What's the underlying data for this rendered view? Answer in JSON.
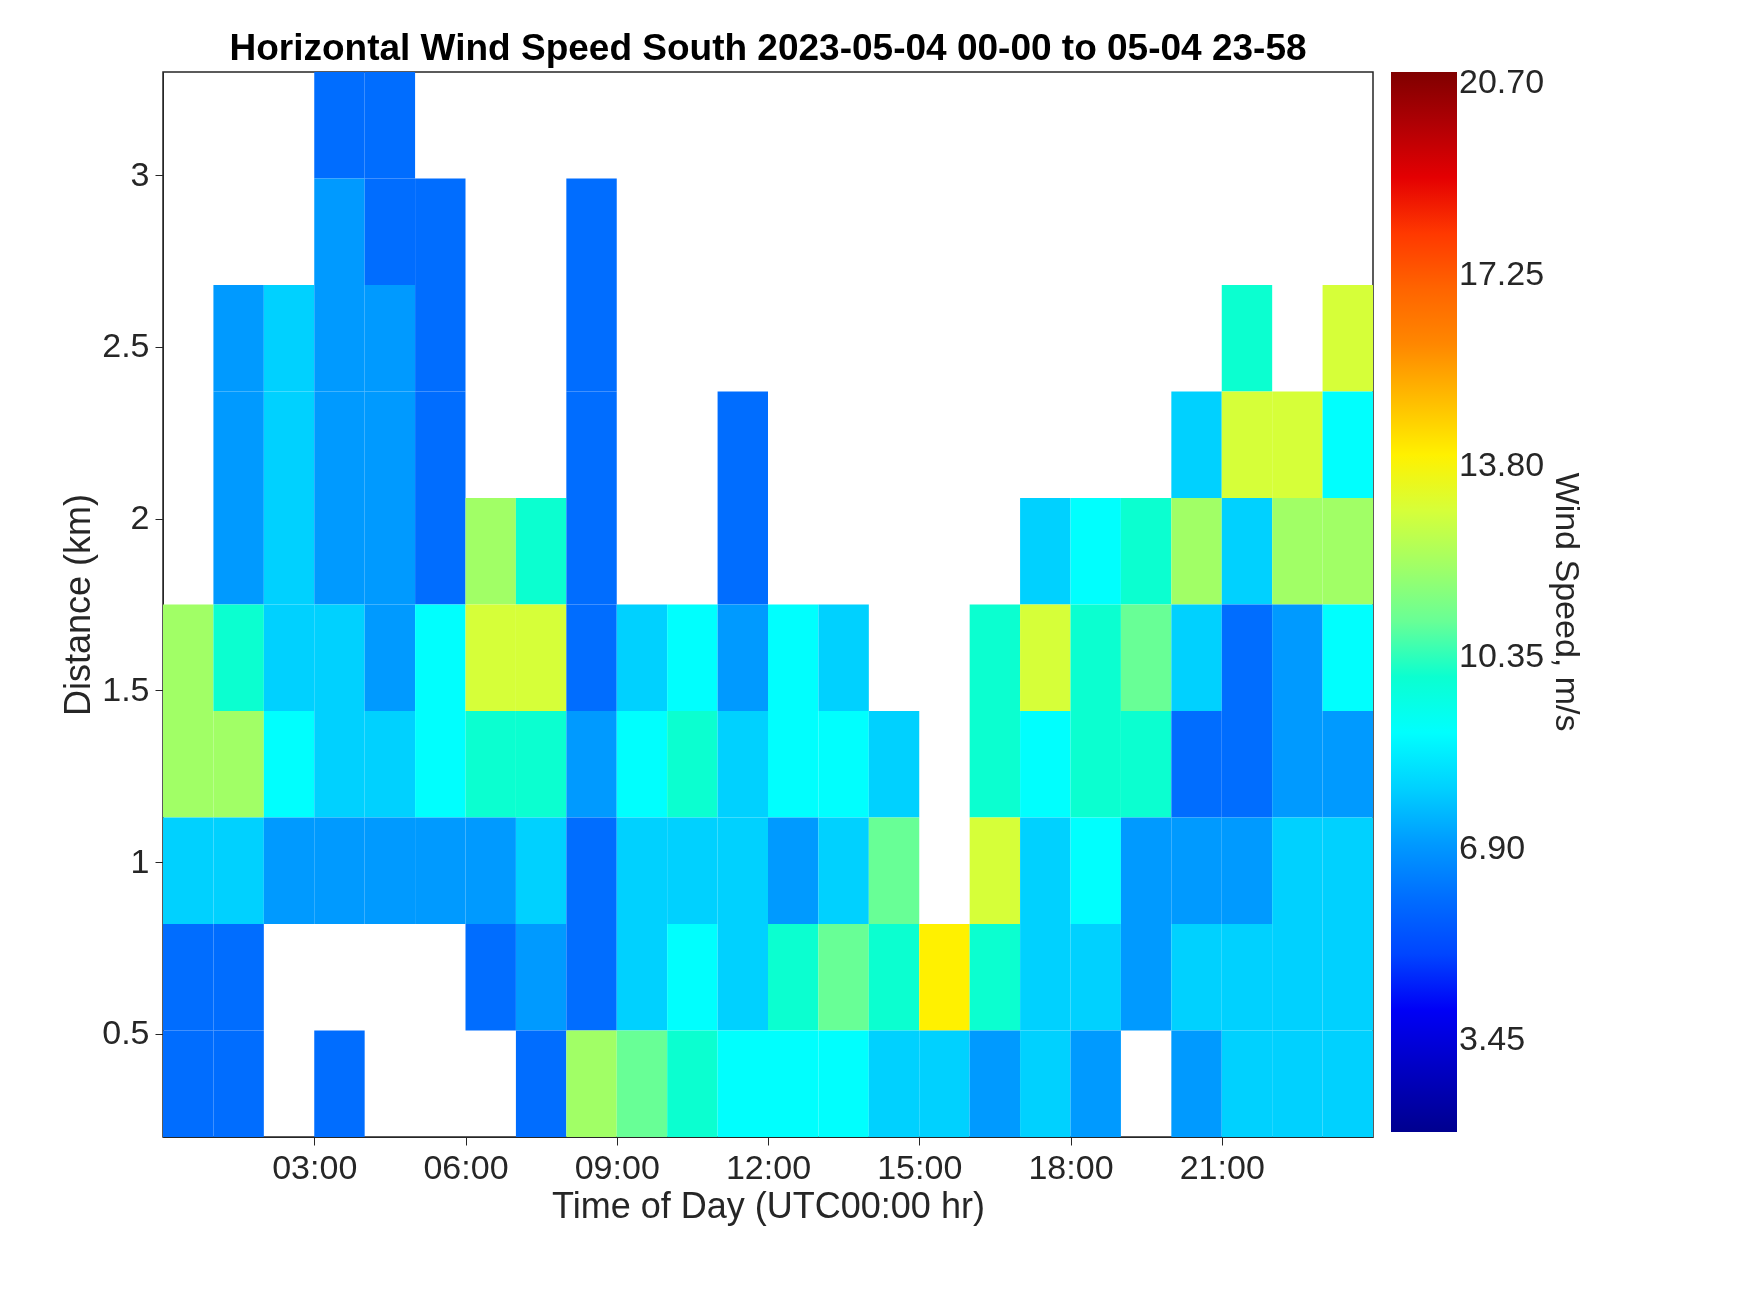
{
  "chart_data": {
    "type": "heatmap",
    "title": "Horizontal Wind Speed South 2023-05-04 00-00 to 05-04 23-58",
    "xlabel": "Time of Day (UTC00:00 hr)",
    "ylabel": "Distance (km)",
    "clabel": "Wind Speed, m/s",
    "x": [
      0.5,
      1.5,
      2.5,
      3.5,
      4.5,
      5.5,
      6.5,
      7.5,
      8.5,
      9.5,
      10.5,
      11.5,
      12.5,
      13.5,
      14.5,
      15.5,
      16.5,
      17.5,
      18.5,
      19.5,
      20.5,
      21.5,
      22.5,
      23.5
    ],
    "xlim": [
      0,
      24
    ],
    "xticks": [
      {
        "value": 3,
        "label": "03:00"
      },
      {
        "value": 6,
        "label": "06:00"
      },
      {
        "value": 9,
        "label": "09:00"
      },
      {
        "value": 12,
        "label": "12:00"
      },
      {
        "value": 15,
        "label": "15:00"
      },
      {
        "value": 18,
        "label": "18:00"
      },
      {
        "value": 21,
        "label": "21:00"
      }
    ],
    "ylim": [
      0.2,
      3.3
    ],
    "yticks": [
      0.5,
      1,
      1.5,
      2,
      2.5,
      3
    ],
    "clim": [
      1.8,
      20.9
    ],
    "cticks": [
      {
        "value": 3.45,
        "label": "3.45"
      },
      {
        "value": 6.9,
        "label": "6.90"
      },
      {
        "value": 10.35,
        "label": "10.35"
      },
      {
        "value": 13.8,
        "label": "13.80"
      },
      {
        "value": 17.25,
        "label": "17.25"
      },
      {
        "value": 20.7,
        "label": "20.70"
      }
    ],
    "cells": [
      [
        null,
        null,
        null,
        6,
        6,
        null,
        null,
        null,
        null,
        null,
        null,
        null,
        null,
        null,
        null,
        null,
        null,
        null,
        null,
        null,
        null,
        null,
        null,
        null
      ],
      [
        null,
        null,
        null,
        7,
        6,
        6,
        null,
        null,
        6,
        null,
        null,
        null,
        null,
        null,
        null,
        null,
        null,
        null,
        null,
        null,
        null,
        null,
        null,
        null
      ],
      [
        null,
        7,
        8,
        7,
        7,
        6,
        null,
        null,
        6,
        null,
        null,
        null,
        null,
        null,
        null,
        null,
        null,
        null,
        null,
        null,
        null,
        10,
        null,
        13
      ],
      [
        null,
        7,
        8,
        7,
        7,
        6,
        null,
        null,
        6,
        null,
        null,
        6,
        null,
        null,
        null,
        null,
        null,
        null,
        null,
        null,
        8,
        13,
        13,
        9
      ],
      [
        null,
        7,
        8,
        7,
        7,
        6,
        12,
        10,
        6,
        null,
        null,
        6,
        null,
        null,
        null,
        null,
        null,
        8,
        9,
        10,
        12,
        8,
        12,
        12
      ],
      [
        12,
        10,
        8,
        8,
        7,
        9,
        13,
        13,
        6,
        8,
        9,
        7,
        9,
        8,
        null,
        null,
        10,
        13,
        10,
        11,
        8,
        6,
        7,
        9
      ],
      [
        12,
        12,
        9,
        8,
        8,
        9,
        10,
        10,
        7,
        9,
        10,
        8,
        9,
        9,
        8,
        null,
        10,
        9,
        10,
        10,
        6,
        6,
        7,
        7
      ],
      [
        8,
        8,
        7,
        7,
        7,
        7,
        7,
        8,
        6,
        8,
        8,
        8,
        7,
        8,
        11,
        null,
        13,
        8,
        9,
        7,
        7,
        7,
        8,
        8
      ],
      [
        6,
        6,
        null,
        null,
        null,
        null,
        6,
        7,
        6,
        8,
        9,
        8,
        10,
        11,
        10,
        14,
        10,
        8,
        8,
        7,
        8,
        8,
        8,
        8
      ],
      [
        6,
        6,
        null,
        6,
        null,
        null,
        null,
        6,
        12,
        11,
        10,
        9,
        9,
        9,
        8,
        8,
        7,
        8,
        7,
        null,
        7,
        8,
        8,
        8
      ]
    ]
  }
}
